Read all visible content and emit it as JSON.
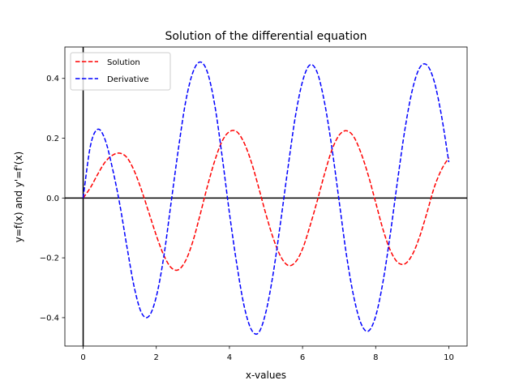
{
  "chart_data": {
    "type": "line",
    "title": "Solution of the differential equation",
    "xlabel": "x-values",
    "ylabel": "y=f(x) and y'=f'(x)",
    "xlim": [
      -0.5,
      10.5
    ],
    "ylim": [
      -0.495,
      0.505
    ],
    "xticks": [
      0,
      2,
      4,
      6,
      8,
      10
    ],
    "xtick_labels": [
      "0",
      "2",
      "4",
      "6",
      "8",
      "10"
    ],
    "yticks": [
      -0.4,
      -0.2,
      0.0,
      0.2,
      0.4
    ],
    "ytick_labels": [
      "−0.4",
      "−0.2",
      "0.0",
      "0.2",
      "0.4"
    ],
    "grid": false,
    "legend_position": "upper left",
    "reference_lines": {
      "horizontal_at_y": 0,
      "vertical_at_x": 0,
      "color": "#000000"
    },
    "series": [
      {
        "name": "Solution",
        "color": "#ff0000",
        "line_style": "dashed",
        "x": [
          0,
          0.2,
          0.4,
          0.6,
          0.8,
          1.0,
          1.2,
          1.4,
          1.6,
          1.8,
          2.0,
          2.2,
          2.4,
          2.6,
          2.8,
          3.0,
          3.2,
          3.4,
          3.6,
          3.8,
          4.0,
          4.2,
          4.4,
          4.6,
          4.8,
          5.0,
          5.2,
          5.4,
          5.6,
          5.8,
          6.0,
          6.2,
          6.4,
          6.6,
          6.8,
          7.0,
          7.2,
          7.4,
          7.6,
          7.8,
          8.0,
          8.2,
          8.4,
          8.6,
          8.8,
          9.0,
          9.2,
          9.4,
          9.6,
          9.8,
          10.0
        ],
        "y": [
          0.0,
          0.035,
          0.08,
          0.12,
          0.143,
          0.15,
          0.135,
          0.09,
          0.025,
          -0.05,
          -0.125,
          -0.19,
          -0.232,
          -0.24,
          -0.21,
          -0.145,
          -0.055,
          0.04,
          0.125,
          0.19,
          0.222,
          0.222,
          0.185,
          0.12,
          0.035,
          -0.055,
          -0.135,
          -0.195,
          -0.225,
          -0.215,
          -0.17,
          -0.095,
          -0.01,
          0.08,
          0.16,
          0.21,
          0.225,
          0.205,
          0.15,
          0.075,
          -0.015,
          -0.105,
          -0.175,
          -0.215,
          -0.22,
          -0.19,
          -0.13,
          -0.05,
          0.035,
          0.095,
          0.135
        ]
      },
      {
        "name": "Derivative",
        "color": "#0000ff",
        "line_style": "dashed",
        "x": [
          0,
          0.2,
          0.4,
          0.6,
          0.8,
          1.0,
          1.2,
          1.4,
          1.6,
          1.8,
          2.0,
          2.2,
          2.4,
          2.6,
          2.8,
          3.0,
          3.2,
          3.4,
          3.6,
          3.8,
          4.0,
          4.2,
          4.4,
          4.6,
          4.8,
          5.0,
          5.2,
          5.4,
          5.6,
          5.8,
          6.0,
          6.2,
          6.4,
          6.6,
          6.8,
          7.0,
          7.2,
          7.4,
          7.6,
          7.8,
          8.0,
          8.2,
          8.4,
          8.6,
          8.8,
          9.0,
          9.2,
          9.4,
          9.6,
          9.8,
          10.0
        ],
        "y": [
          0.0,
          0.175,
          0.23,
          0.195,
          0.1,
          -0.02,
          -0.165,
          -0.3,
          -0.385,
          -0.395,
          -0.33,
          -0.2,
          -0.02,
          0.16,
          0.32,
          0.42,
          0.455,
          0.42,
          0.31,
          0.14,
          -0.05,
          -0.22,
          -0.36,
          -0.44,
          -0.45,
          -0.38,
          -0.25,
          -0.08,
          0.1,
          0.27,
          0.39,
          0.445,
          0.42,
          0.32,
          0.17,
          -0.01,
          -0.19,
          -0.33,
          -0.42,
          -0.445,
          -0.395,
          -0.28,
          -0.12,
          0.06,
          0.23,
          0.36,
          0.435,
          0.445,
          0.39,
          0.275,
          0.12
        ]
      }
    ]
  }
}
